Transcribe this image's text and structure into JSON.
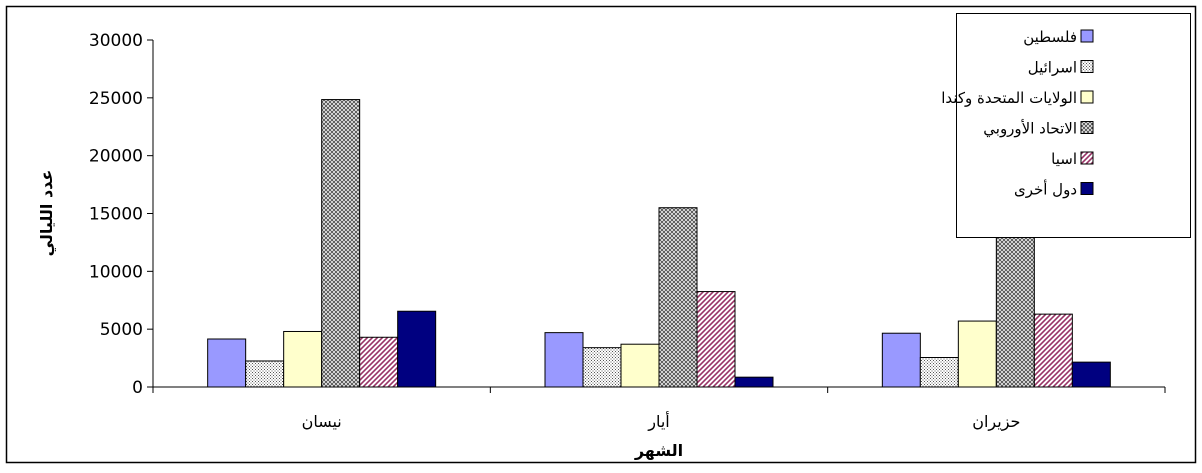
{
  "chart_data": {
    "type": "bar",
    "title": "",
    "xlabel": "الشهر",
    "ylabel": "عدد الليالي",
    "categories": [
      "نيسان",
      "أيار",
      "حزيران"
    ],
    "ylim": [
      0,
      30000
    ],
    "yticks": [
      0,
      5000,
      10000,
      15000,
      20000,
      25000,
      30000
    ],
    "ytick_labels": [
      "0",
      "5000",
      "10000",
      "15000",
      "20000",
      "25000",
      "30000"
    ],
    "grid": false,
    "legend_position": "top-right",
    "series": [
      {
        "name": "فلسطين",
        "values": [
          4150,
          4700,
          4650
        ],
        "color": "#9999ff",
        "pattern": "solid"
      },
      {
        "name": "اسرائيل",
        "values": [
          2250,
          3400,
          2550
        ],
        "color": "#ffffff",
        "pattern": "dots"
      },
      {
        "name": "الولايات المتحدة وكندا",
        "values": [
          4800,
          3700,
          5700
        ],
        "color": "#ffffcc",
        "pattern": "solid"
      },
      {
        "name": "الاتحاد الأوروبي",
        "values": [
          24850,
          15500,
          14800
        ],
        "color": "#808080",
        "pattern": "crosshatch"
      },
      {
        "name": "اسيا",
        "values": [
          4300,
          8250,
          6300
        ],
        "color": "#993366",
        "pattern": "diagonal"
      },
      {
        "name": "دول أخرى",
        "values": [
          6550,
          850,
          2150
        ],
        "color": "#000080",
        "pattern": "solid"
      }
    ]
  }
}
